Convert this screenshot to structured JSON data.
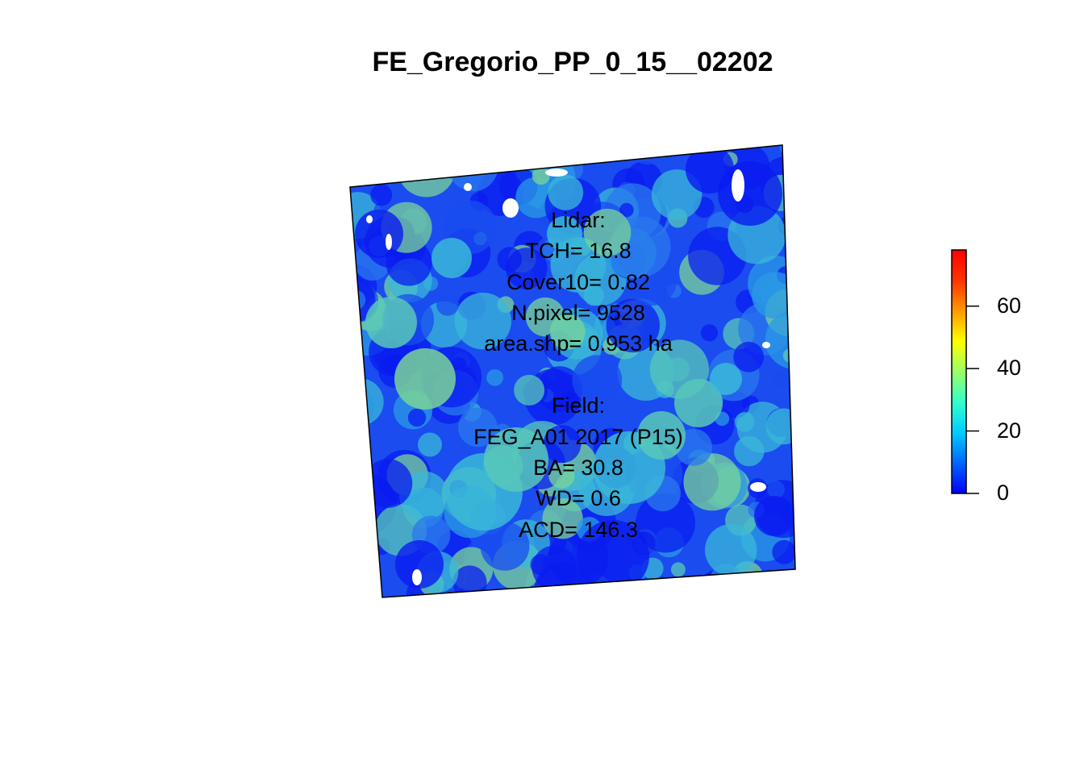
{
  "title": "FE_Gregorio_PP_0_15__02202",
  "map": {
    "fill_colors": [
      "#0a1cf0",
      "#1a4cf0",
      "#2a78ee",
      "#2a9ae6",
      "#3ab8d8",
      "#58c8b8",
      "#7ad498"
    ],
    "nodata_color": "#ffffff",
    "outline_color": "#000000"
  },
  "lidar": {
    "header": "Lidar:",
    "tch": "TCH= 16.8",
    "cover10": "Cover10= 0.82",
    "npixel": "N.pixel= 9528",
    "area": "area.shp= 0.953 ha"
  },
  "field": {
    "header": "Field:",
    "plot": "FEG_A01 2017 (P15)",
    "ba": "BA= 30.8",
    "wd": "WD= 0.6",
    "acd": "ACD= 146.3"
  },
  "legend": {
    "ticks": [
      "0",
      "20",
      "40",
      "60"
    ],
    "range": [
      0,
      78
    ],
    "colors": [
      "#0000ff",
      "#0066ff",
      "#00ccff",
      "#33ffcc",
      "#99ff66",
      "#ffff00",
      "#ff9900",
      "#ff3300",
      "#ff0000"
    ]
  }
}
